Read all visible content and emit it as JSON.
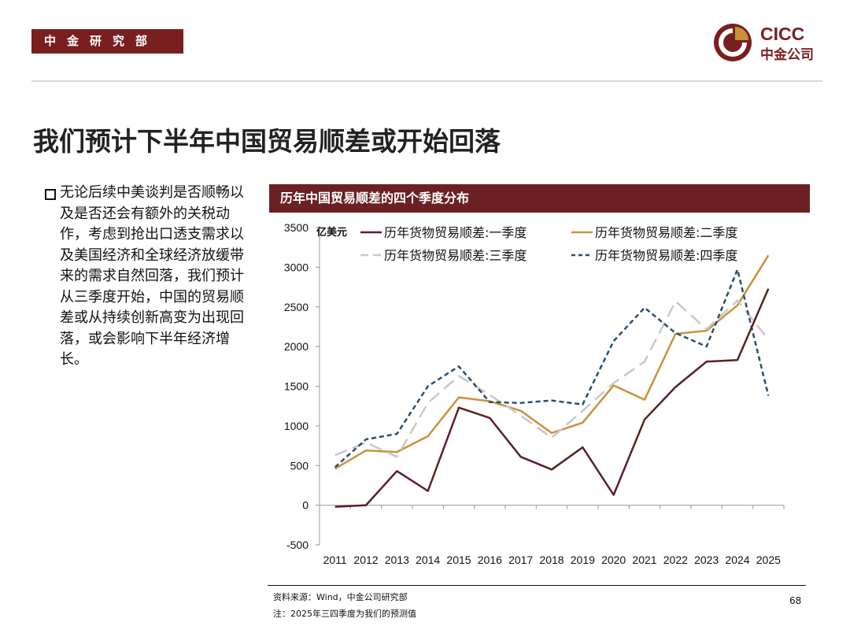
{
  "header": {
    "dept": "中金研究部"
  },
  "logo": {
    "en": "CICC",
    "cn": "中金公司"
  },
  "slide": {
    "title": "我们预计下半年中国贸易顺差或开始回落",
    "bullet": "无论后续中美谈判是否顺畅以及是否还会有额外的关税动作，考虑到抢出口透支需求以及美国经济和全球经济放缓带来的需求自然回落，我们预计从三季度开始，中国的贸易顺差或从持续创新高变为出现回落，或会影响下半年经济增长。"
  },
  "footer": {
    "source": "资料来源：Wind，中金公司研究部",
    "note": "注：2025年三四季度为我们的预测值",
    "page": "68"
  },
  "colors": {
    "brand": "#7a1f1f",
    "q1": "#5c1f22",
    "q2": "#c8923b",
    "q3": "#c8c8c8",
    "q4": "#2b4e6e"
  },
  "chart_data": {
    "type": "line",
    "title": "历年中国贸易顺差的四个季度分布",
    "ylabel": "亿美元",
    "xlabel": "",
    "ylim": [
      -500,
      3500
    ],
    "yticks": [
      -500,
      0,
      500,
      1000,
      1500,
      2000,
      2500,
      3000,
      3500
    ],
    "categories": [
      "2011",
      "2012",
      "2013",
      "2014",
      "2015",
      "2016",
      "2017",
      "2018",
      "2019",
      "2020",
      "2021",
      "2022",
      "2023",
      "2024",
      "2025"
    ],
    "series": [
      {
        "name": "历年货物贸易顺差:一季度",
        "style": "solid",
        "color": "#5c1f22",
        "values": [
          -20,
          0,
          430,
          180,
          1230,
          1100,
          610,
          450,
          730,
          130,
          1080,
          1490,
          1810,
          1830,
          2730
        ]
      },
      {
        "name": "历年货物贸易顺差:二季度",
        "style": "solid",
        "color": "#c8923b",
        "values": [
          460,
          690,
          670,
          870,
          1360,
          1310,
          1190,
          910,
          1040,
          1510,
          1330,
          2160,
          2200,
          2520,
          3150
        ]
      },
      {
        "name": "历年货物贸易顺差:三季度",
        "style": "dashed",
        "color": "#c8c8c8",
        "values": [
          630,
          790,
          610,
          1290,
          1630,
          1390,
          1130,
          850,
          1190,
          1540,
          1810,
          2570,
          2220,
          2580,
          2090
        ]
      },
      {
        "name": "历年货物贸易顺差:四季度",
        "style": "dotted",
        "color": "#2b4e6e",
        "values": [
          480,
          830,
          900,
          1500,
          1750,
          1300,
          1290,
          1320,
          1270,
          2070,
          2490,
          2170,
          2000,
          2970,
          1380
        ]
      }
    ]
  }
}
